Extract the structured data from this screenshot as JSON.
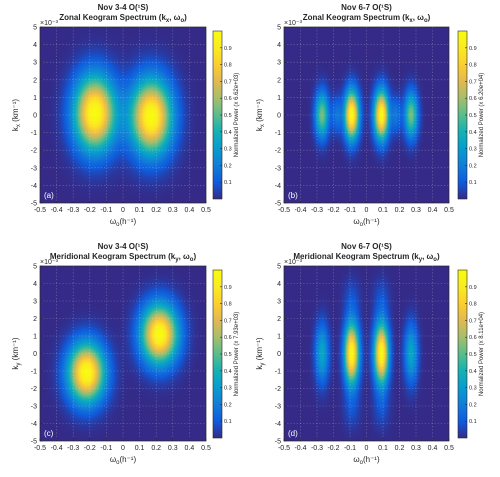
{
  "chart_data": [
    {
      "type": "heatmap",
      "panel_label": "(a)",
      "title_line1": "Nov 3-4 O(¹S)",
      "title_line2": "Zonal Keogram Spectrum (k",
      "title_sub": "x",
      "title_tail": ", ω",
      "title_sub2": "o",
      "title_end": ")",
      "xlabel": "ω",
      "xlabel_sub": "o",
      "xlabel_unit": "(h⁻¹)",
      "ylabel": "k",
      "ylabel_sub": "x",
      "ylabel_unit": "(km⁻¹)",
      "y_exponent": "×10⁻³",
      "xlim": [
        -0.5,
        0.5
      ],
      "ylim": [
        -5,
        5
      ],
      "x_ticks": [
        "-0.5",
        "-0.4",
        "-0.3",
        "-0.2",
        "-0.1",
        "0",
        "0.1",
        "0.2",
        "0.3",
        "0.4",
        "0.5"
      ],
      "y_ticks": [
        "5",
        "4",
        "3",
        "2",
        "1",
        "0",
        "-1",
        "-2",
        "-3",
        "-4",
        "-5"
      ],
      "colorbar_label": "Normalized Power (x 6.62e+03)",
      "colorbar_ticks": [
        "0.9",
        "0.8",
        "0.7",
        "0.6",
        "0.5",
        "0.4",
        "0.3",
        "0.2",
        "0.1"
      ],
      "peaks": [
        {
          "x": -0.17,
          "y": 0.1,
          "sx": 0.085,
          "sy": 1.45,
          "amp": 1.0
        },
        {
          "x": 0.17,
          "y": -0.1,
          "sx": 0.085,
          "sy": 1.45,
          "amp": 1.0
        }
      ]
    },
    {
      "type": "heatmap",
      "panel_label": "(b)",
      "title_line1": "Nov 6-7 O(¹S)",
      "title_line2": "Zonal Keogram Spectrum (k",
      "title_sub": "x",
      "title_tail": ", ω",
      "title_sub2": "o",
      "title_end": ")",
      "xlabel": "ω",
      "xlabel_sub": "o",
      "xlabel_unit": "(h⁻¹)",
      "ylabel": "k",
      "ylabel_sub": "x",
      "ylabel_unit": "(km⁻¹)",
      "y_exponent": "×10⁻³",
      "xlim": [
        -0.5,
        0.5
      ],
      "ylim": [
        -5,
        5
      ],
      "x_ticks": [
        "-0.5",
        "-0.4",
        "-0.3",
        "-0.2",
        "-0.1",
        "0",
        "0.1",
        "0.2",
        "0.3",
        "0.4",
        "0.5"
      ],
      "y_ticks": [
        "5",
        "4",
        "3",
        "2",
        "1",
        "0",
        "-1",
        "-2",
        "-3",
        "-4",
        "-5"
      ],
      "colorbar_label": "Normalized Power (x 6.20e+04)",
      "colorbar_ticks": [
        "0.9",
        "0.8",
        "0.7",
        "0.6",
        "0.5",
        "0.4",
        "0.3",
        "0.2",
        "0.1"
      ],
      "peaks": [
        {
          "x": -0.27,
          "y": 0.0,
          "sx": 0.028,
          "sy": 0.9,
          "amp": 0.55
        },
        {
          "x": -0.09,
          "y": 0.0,
          "sx": 0.03,
          "sy": 0.95,
          "amp": 1.0
        },
        {
          "x": 0.09,
          "y": 0.0,
          "sx": 0.03,
          "sy": 0.95,
          "amp": 1.0
        },
        {
          "x": 0.27,
          "y": 0.0,
          "sx": 0.028,
          "sy": 0.9,
          "amp": 0.55
        },
        {
          "x": -0.18,
          "y": 0.0,
          "sx": 0.02,
          "sy": 0.7,
          "amp": 0.18
        },
        {
          "x": 0.18,
          "y": 0.0,
          "sx": 0.02,
          "sy": 0.7,
          "amp": 0.18
        }
      ]
    },
    {
      "type": "heatmap",
      "panel_label": "(c)",
      "title_line1": "Nov 3-4 O(¹S)",
      "title_line2": "Meridional Keogram Spectrum (k",
      "title_sub": "y",
      "title_tail": ", ω",
      "title_sub2": "o",
      "title_end": ")",
      "xlabel": "ω",
      "xlabel_sub": "o",
      "xlabel_unit": "(h⁻¹)",
      "ylabel": "k",
      "ylabel_sub": "y",
      "ylabel_unit": "(km⁻¹)",
      "y_exponent": "×10⁻³",
      "xlim": [
        -0.5,
        0.5
      ],
      "ylim": [
        -5,
        5
      ],
      "x_ticks": [
        "-0.5",
        "-0.4",
        "-0.3",
        "-0.2",
        "-0.1",
        "0",
        "0.1",
        "0.2",
        "0.3",
        "0.4",
        "0.5"
      ],
      "y_ticks": [
        "5",
        "4",
        "3",
        "2",
        "1",
        "0",
        "-1",
        "-2",
        "-3",
        "-4",
        "-5"
      ],
      "colorbar_label": "Normalized Power (x 7.93e+03)",
      "colorbar_ticks": [
        "0.9",
        "0.8",
        "0.7",
        "0.6",
        "0.5",
        "0.4",
        "0.3",
        "0.2",
        "0.1"
      ],
      "peaks": [
        {
          "x": -0.22,
          "y": -1.1,
          "sx": 0.075,
          "sy": 1.15,
          "amp": 1.0
        },
        {
          "x": 0.22,
          "y": 1.1,
          "sx": 0.075,
          "sy": 1.15,
          "amp": 1.0
        }
      ]
    },
    {
      "type": "heatmap",
      "panel_label": "(d)",
      "title_line1": "Nov 6-7 O(¹S)",
      "title_line2": "Meridional Keogram Spectrum (k",
      "title_sub": "y",
      "title_tail": ", ω",
      "title_sub2": "o",
      "title_end": ")",
      "xlabel": "ω",
      "xlabel_sub": "o",
      "xlabel_unit": "(h⁻¹)",
      "ylabel": "k",
      "ylabel_sub": "y",
      "ylabel_unit": "(km⁻¹)",
      "y_exponent": "×10⁻³",
      "xlim": [
        -0.5,
        0.5
      ],
      "ylim": [
        -5,
        5
      ],
      "x_ticks": [
        "-0.5",
        "-0.4",
        "-0.3",
        "-0.2",
        "-0.1",
        "0",
        "0.1",
        "0.2",
        "0.3",
        "0.4",
        "0.5"
      ],
      "y_ticks": [
        "5",
        "4",
        "3",
        "2",
        "1",
        "0",
        "-1",
        "-2",
        "-3",
        "-4",
        "-5"
      ],
      "colorbar_label": "Normalized Power (x 8.11e+04)",
      "colorbar_ticks": [
        "0.9",
        "0.8",
        "0.7",
        "0.6",
        "0.5",
        "0.4",
        "0.3",
        "0.2",
        "0.1"
      ],
      "peaks": [
        {
          "x": -0.27,
          "y": 0.0,
          "sx": 0.028,
          "sy": 1.15,
          "amp": 0.35
        },
        {
          "x": -0.09,
          "y": 0.0,
          "sx": 0.03,
          "sy": 1.2,
          "amp": 1.0
        },
        {
          "x": 0.09,
          "y": 0.0,
          "sx": 0.03,
          "sy": 1.2,
          "amp": 1.0
        },
        {
          "x": 0.27,
          "y": 0.0,
          "sx": 0.028,
          "sy": 1.15,
          "amp": 0.35
        },
        {
          "x": -0.09,
          "y": 3.2,
          "sx": 0.035,
          "sy": 0.8,
          "amp": 0.07
        },
        {
          "x": 0.09,
          "y": 3.2,
          "sx": 0.035,
          "sy": 0.8,
          "amp": 0.07
        },
        {
          "x": -0.09,
          "y": -3.2,
          "sx": 0.035,
          "sy": 0.8,
          "amp": 0.07
        },
        {
          "x": 0.09,
          "y": -3.2,
          "sx": 0.035,
          "sy": 0.8,
          "amp": 0.07
        }
      ]
    }
  ]
}
